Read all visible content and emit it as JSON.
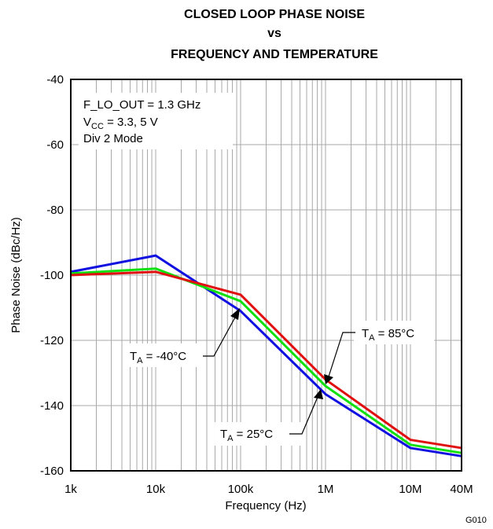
{
  "chart_data": {
    "type": "line",
    "title_lines": [
      "CLOSED LOOP PHASE NOISE",
      "vs",
      "FREQUENCY AND TEMPERATURE"
    ],
    "xlabel": "Frequency (Hz)",
    "ylabel": "Phase Noise (dBc/Hz)",
    "xscale": "log",
    "xlim": [
      1000,
      40000000
    ],
    "ylim": [
      -160,
      -40
    ],
    "xticks": [
      {
        "value": 1000,
        "label": "1k"
      },
      {
        "value": 10000,
        "label": "10k"
      },
      {
        "value": 100000,
        "label": "100k"
      },
      {
        "value": 1000000,
        "label": "1M"
      },
      {
        "value": 10000000,
        "label": "10M"
      },
      {
        "value": 40000000,
        "label": "40M"
      }
    ],
    "yticks": [
      -40,
      -60,
      -80,
      -100,
      -120,
      -140,
      -160
    ],
    "grid": true,
    "info_box": {
      "line1": "F_LO_OUT = 1.3 GHz",
      "line2_main": "V",
      "line2_sub": "CC",
      "line2_rest": " = 3.3, 5 V",
      "line3": "Div 2 Mode"
    },
    "series": [
      {
        "color": "#1010e0",
        "points": [
          [
            1000,
            -99
          ],
          [
            10000,
            -94
          ],
          [
            100000,
            -111
          ],
          [
            1000000,
            -136.5
          ],
          [
            10000000,
            -153
          ],
          [
            40000000,
            -155.5
          ]
        ]
      },
      {
        "color": "#10e010",
        "points": [
          [
            1000,
            -99.5
          ],
          [
            10000,
            -98
          ],
          [
            100000,
            -108
          ],
          [
            1000000,
            -134
          ],
          [
            10000000,
            -152
          ],
          [
            40000000,
            -154.5
          ]
        ]
      },
      {
        "color": "#e01010",
        "points": [
          [
            1000,
            -100
          ],
          [
            10000,
            -99
          ],
          [
            100000,
            -106
          ],
          [
            1000000,
            -132
          ],
          [
            10000000,
            -150.5
          ],
          [
            40000000,
            -153
          ]
        ]
      }
    ],
    "annotations": [
      {
        "id": "m40",
        "main": "T",
        "sub": "A",
        "rest": " = -40°C"
      },
      {
        "id": "p85",
        "main": "T",
        "sub": "A",
        "rest": " = 85°C"
      },
      {
        "id": "p25",
        "main": "T",
        "sub": "A",
        "rest": " = 25°C"
      }
    ],
    "figure_code": "G010"
  }
}
